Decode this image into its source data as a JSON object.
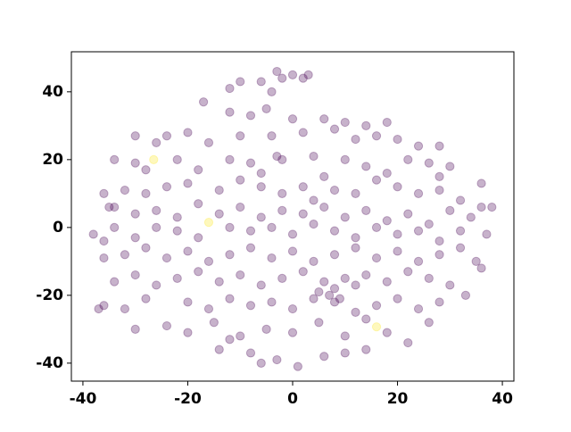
{
  "chart_data": {
    "type": "scatter",
    "xlim": [
      -42.2,
      42.2
    ],
    "ylim": [
      -45.3,
      51.8
    ],
    "xticks": [
      -40,
      -20,
      0,
      20,
      40
    ],
    "yticks": [
      -40,
      -20,
      0,
      20,
      40
    ],
    "alpha": 0.3,
    "series": [
      {
        "color": "#440154",
        "x": [
          -3,
          -2,
          0,
          2,
          -6,
          -10,
          -4,
          -12,
          3,
          -17,
          -12,
          -5,
          0,
          6,
          10,
          14,
          18,
          -8,
          -30,
          -24,
          -20,
          -16,
          -10,
          -4,
          2,
          8,
          12,
          20,
          24,
          28,
          -26,
          16,
          -34,
          -30,
          -22,
          -18,
          -12,
          -8,
          -3,
          -2,
          4,
          10,
          14,
          22,
          26,
          30,
          36,
          -28,
          6,
          18,
          -6,
          28,
          -36,
          -32,
          -28,
          -24,
          -20,
          -14,
          -10,
          -6,
          -2,
          2,
          8,
          12,
          16,
          20,
          24,
          28,
          32,
          36,
          -34,
          4,
          -35,
          -30,
          -26,
          -22,
          -18,
          -14,
          -10,
          -6,
          -2,
          2,
          6,
          10,
          14,
          18,
          22,
          26,
          30,
          34,
          38,
          -12,
          -38,
          -34,
          -30,
          -26,
          -22,
          -18,
          -8,
          -4,
          0,
          4,
          8,
          12,
          16,
          20,
          24,
          28,
          32,
          37,
          -36,
          -36,
          -32,
          -28,
          -24,
          -20,
          -16,
          -12,
          -8,
          -4,
          0,
          4,
          8,
          12,
          16,
          20,
          24,
          28,
          32,
          35,
          -34,
          -30,
          -26,
          -22,
          -18,
          -14,
          -10,
          -6,
          -2,
          2,
          6,
          8,
          10,
          12,
          14,
          18,
          22,
          26,
          30,
          36,
          5,
          7,
          9,
          -36,
          -32,
          -28,
          -20,
          -16,
          -12,
          -8,
          -4,
          0,
          4,
          8,
          12,
          16,
          20,
          24,
          28,
          33,
          -37,
          -30,
          -24,
          -20,
          -15,
          -10,
          -5,
          0,
          5,
          10,
          14,
          18,
          22,
          26,
          -12,
          -14,
          -8,
          -3,
          1,
          6,
          10,
          14,
          -6
        ],
        "values": [
          46,
          44,
          45,
          44,
          43,
          43,
          40,
          41,
          45,
          37,
          34,
          35,
          32,
          32,
          31,
          30,
          31,
          33,
          27,
          27,
          28,
          25,
          27,
          27,
          28,
          29,
          26,
          26,
          24,
          24,
          25,
          27,
          20,
          19,
          20,
          17,
          20,
          19,
          21,
          20,
          21,
          20,
          18,
          20,
          19,
          18,
          13,
          17,
          15,
          16,
          16,
          15,
          10,
          11,
          10,
          12,
          13,
          11,
          14,
          12,
          10,
          12,
          11,
          10,
          14,
          12,
          10,
          11,
          8,
          6,
          6,
          8,
          6,
          4,
          5,
          3,
          7,
          4,
          6,
          3,
          5,
          4,
          6,
          3,
          5,
          2,
          4,
          1,
          5,
          3,
          6,
          0,
          -2,
          0,
          -3,
          0,
          -1,
          -3,
          -1,
          0,
          -2,
          1,
          -1,
          -3,
          0,
          -2,
          -1,
          -4,
          -1,
          -2,
          -4,
          -9,
          -8,
          -6,
          -9,
          -7,
          -10,
          -8,
          -6,
          -9,
          -7,
          -10,
          -8,
          -6,
          -9,
          -7,
          -10,
          -8,
          -6,
          -10,
          -16,
          -14,
          -17,
          -15,
          -13,
          -16,
          -14,
          -17,
          -15,
          -13,
          -16,
          -18,
          -15,
          -17,
          -14,
          -16,
          -13,
          -15,
          -17,
          -12,
          -19,
          -20,
          -21,
          -23,
          -24,
          -21,
          -22,
          -24,
          -21,
          -23,
          -22,
          -24,
          -21,
          -22,
          -25,
          -23,
          -21,
          -24,
          -22,
          -20,
          -24,
          -30,
          -29,
          -31,
          -28,
          -32,
          -30,
          -31,
          -28,
          -32,
          -27,
          -31,
          -34,
          -28,
          -33,
          -36,
          -37,
          -39,
          -41,
          -38,
          -37,
          -36,
          -40
        ]
      },
      {
        "color": "#fde725",
        "x": [
          -26.5,
          -16,
          16
        ],
        "values": [
          20,
          1.5,
          -29.3
        ]
      }
    ]
  }
}
